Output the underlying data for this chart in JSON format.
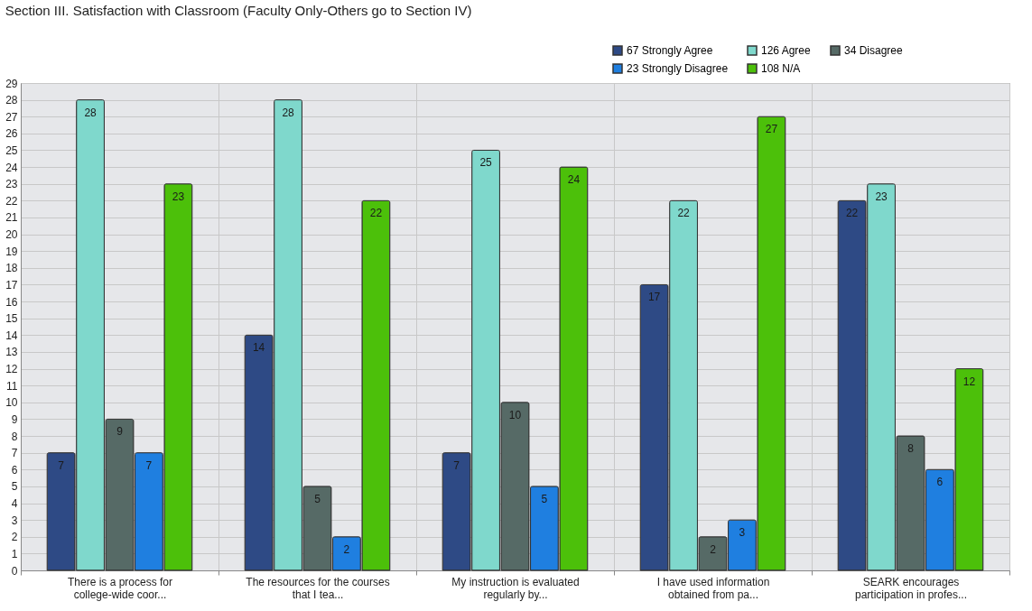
{
  "chart_data": {
    "type": "bar",
    "title": "Section III.  Satisfaction with Classroom (Faculty Only-Others go to Section IV)",
    "categories": [
      "There is a process for college-wide coor...",
      "The resources for the courses that I tea...",
      "My instruction is evaluated regularly by...",
      "I have used information obtained from pa...",
      "SEARK encourages participation in profes..."
    ],
    "series": [
      {
        "name": "67 Strongly Agree",
        "color": "#2e4a85",
        "values": [
          7,
          14,
          7,
          17,
          22
        ]
      },
      {
        "name": "126 Agree",
        "color": "#7fd8cc",
        "values": [
          28,
          28,
          25,
          22,
          23
        ]
      },
      {
        "name": "34 Disagree",
        "color": "#566a66",
        "values": [
          9,
          5,
          10,
          2,
          8
        ]
      },
      {
        "name": "23 Strongly Disagree",
        "color": "#1f7fe0",
        "values": [
          7,
          2,
          5,
          3,
          6
        ]
      },
      {
        "name": "108 N/A",
        "color": "#4cc00a",
        "values": [
          23,
          22,
          24,
          27,
          12
        ]
      }
    ],
    "ylim": [
      0,
      29
    ],
    "yticks": [
      0,
      1,
      2,
      3,
      4,
      5,
      6,
      7,
      8,
      9,
      10,
      11,
      12,
      13,
      14,
      15,
      16,
      17,
      18,
      19,
      20,
      21,
      22,
      23,
      24,
      25,
      26,
      27,
      28,
      29
    ],
    "grid": true,
    "legend": "top right",
    "data_labels": true
  }
}
